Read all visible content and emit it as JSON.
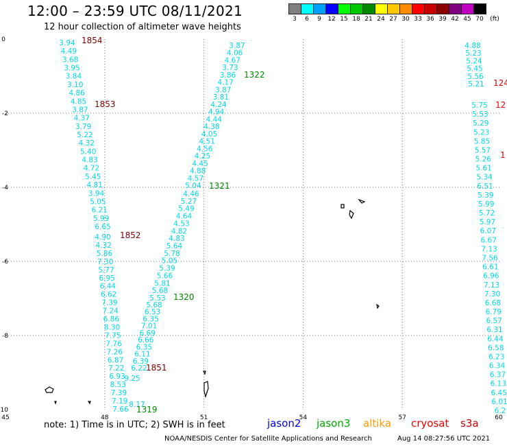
{
  "header": {
    "title": "12:00 – 23:59 UTC 08/11/2021",
    "subtitle": "12 hour collection of altimeter wave heights"
  },
  "colorbar": {
    "unit": "(ft)",
    "labels": [
      "3",
      "6",
      "9",
      "12",
      "15",
      "18",
      "21",
      "24",
      "27",
      "30",
      "33",
      "36",
      "39",
      "42",
      "45",
      "70"
    ],
    "colors": [
      "#808080",
      "#00ffff",
      "#00a0ff",
      "#0000ff",
      "#00ff00",
      "#00c800",
      "#008800",
      "#ffff00",
      "#ffc800",
      "#ff8c00",
      "#ff0000",
      "#c80000",
      "#8c0000",
      "#800080",
      "#c000c0",
      "#000000"
    ]
  },
  "axes": {
    "x_ticks": [
      "45",
      "48",
      "51",
      "54",
      "57",
      "60"
    ],
    "y_ticks": [
      "0",
      "-2",
      "-4",
      "-6",
      "-8",
      "-10"
    ]
  },
  "tracks": [
    {
      "pass_label": "1854",
      "label_color": "#7a0000",
      "values": [
        "3.94",
        "4.49",
        "3.68",
        "3.95",
        "3.84",
        "3.10",
        "4.86",
        "4.85",
        "3.87",
        "4.37",
        "3.79",
        "5.22",
        "4.32",
        "5.40",
        "4.83",
        "4.72",
        "5.45",
        "4.81",
        "3.94",
        "5.05",
        "6.21",
        "5.99",
        "6.65"
      ]
    },
    {
      "pass_label": "1853",
      "label_color": "#7a0000",
      "values": []
    },
    {
      "pass_label": "1852",
      "label_color": "#7a0000",
      "values": [
        "4.90",
        "4.32",
        "5.86",
        "7.30",
        "5.77",
        "6.95",
        "6.44",
        "6.62",
        "7.39",
        "7.24",
        "6.86",
        "8.30",
        "7.75",
        "7.76",
        "7.26",
        "6.87",
        "7.22",
        "6.93",
        "8.53",
        "7.39",
        "7.19",
        "7.66"
      ]
    },
    {
      "pass_label": "1851",
      "label_color": "#7a0000",
      "values": [
        "9.25",
        "8.17"
      ]
    },
    {
      "pass_label": "1322",
      "label_color": "#008800",
      "values": [
        "3.87",
        "4.06",
        "4.67",
        "3.73",
        "3.86",
        "4.17",
        "3.87",
        "3.81",
        "4.24",
        "4.94",
        "4.44",
        "4.38",
        "4.05",
        "4.51",
        "4.56",
        "4.25",
        "4.45",
        "4.88",
        "4.57",
        "5.04"
      ]
    },
    {
      "pass_label": "1321",
      "label_color": "#008800",
      "values": [
        "4.46",
        "5.27",
        "5.49",
        "4.64",
        "4.53",
        "4.82",
        "4.83",
        "5.64",
        "5.78",
        "5.05",
        "5.39",
        "5.66",
        "5.81",
        "5.68",
        "5.53"
      ]
    },
    {
      "pass_label": "1320",
      "label_color": "#008800",
      "values": [
        "5.68",
        "6.53",
        "6.35",
        "7.01",
        "6.69",
        "6.66",
        "6.35",
        "6.11",
        "6.39",
        "6.22"
      ]
    },
    {
      "pass_label": "1319",
      "label_color": "#008800",
      "values": []
    },
    {
      "pass_label": "124",
      "label_color": "#dd0000",
      "values": [
        "4.88",
        "5.23",
        "5.24",
        "5.45",
        "5.56",
        "5.21"
      ]
    },
    {
      "pass_label": "12",
      "label_color": "#dd0000",
      "values": [
        "5.75",
        "5.53",
        "5.29",
        "5.23",
        "5.85",
        "5.57",
        "5.26",
        "5.61",
        "5.34",
        "6.51",
        "5.39",
        "5.99",
        "5.72",
        "5.97",
        "6.07",
        "6.67",
        "7.13",
        "7.56",
        "6.61",
        "6.96",
        "7.13",
        "7.30",
        "6.68",
        "6.79",
        "6.57",
        "6.31",
        "6.44",
        "6.58",
        "6.23",
        "6.34",
        "6.37",
        "6.13",
        "6.45",
        "6.01",
        "6.2"
      ]
    },
    {
      "pass_label": "1",
      "label_color": "#dd0000",
      "values": []
    }
  ],
  "footer": {
    "note": "note:  1) Time is in UTC;  2) SWH is in feet",
    "legend": [
      {
        "name": "jason2",
        "color": "#0000dd"
      },
      {
        "name": "jason3",
        "color": "#00aa00"
      },
      {
        "name": "altika",
        "color": "#ff9900"
      },
      {
        "name": "cryosat",
        "color": "#ee0000"
      },
      {
        "name": "s3a",
        "color": "#cc0000"
      }
    ],
    "credit": "NOAA/NESDIS Center for Satellite Applications and Research",
    "timestamp": "Aug 14 08:27:56 UTC 2021"
  }
}
